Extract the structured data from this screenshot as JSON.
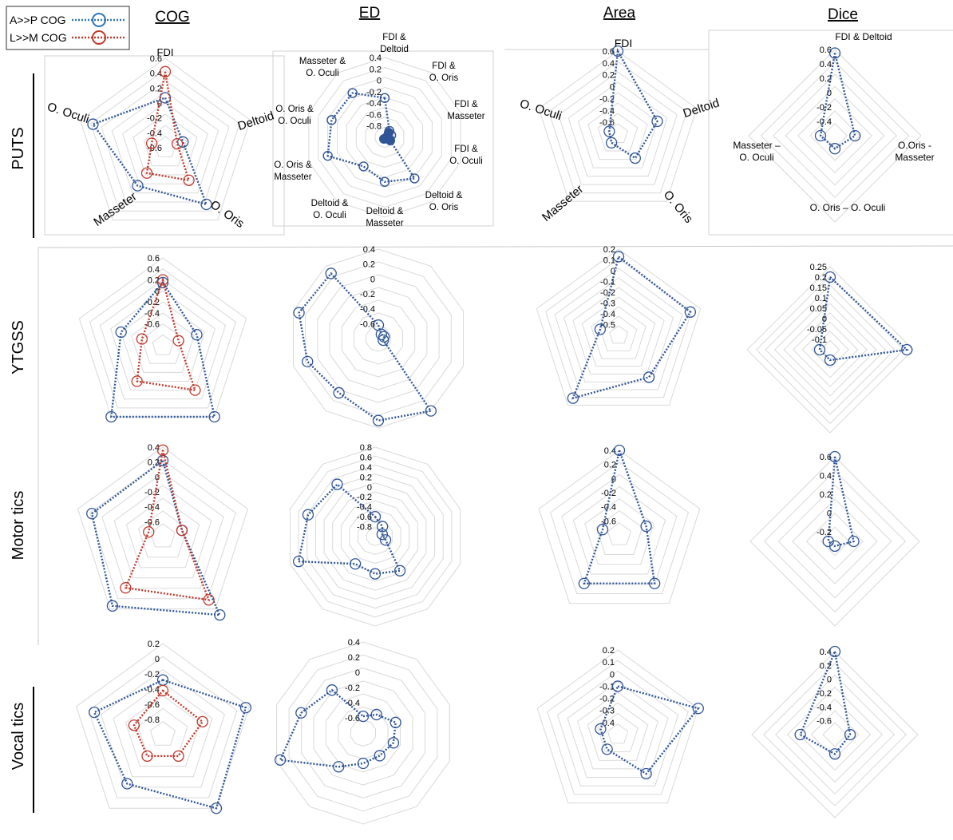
{
  "columns": [
    "COG",
    "ED",
    "Area",
    "Dice"
  ],
  "rows": [
    "PUTS",
    "YTGSS",
    "Motor tics",
    "Vocal tics"
  ],
  "legend": [
    {
      "label": "A>>P COG",
      "color": "#2e75b6"
    },
    {
      "label": "L>>M COG",
      "color": "#c0392b"
    }
  ],
  "colors": {
    "blue_marker": "#2f5597",
    "blue_line": "#2f5597",
    "red": "#c0392b",
    "grid": "#d9d9d9"
  },
  "chart_data": [
    {
      "id": "cog-puts",
      "type": "radar",
      "axes": [
        "FDI",
        "Deltoid",
        "O. Oris",
        "Masseter",
        "O. Oculi"
      ],
      "ticks": [
        "0.6",
        "0.4",
        "0.2",
        "0",
        "-0.2",
        "-0.4",
        "-0.6"
      ],
      "tick_values": [
        0.6,
        0.4,
        0.2,
        0,
        -0.2,
        -0.4,
        -0.6
      ],
      "range": [
        -0.6,
        0.6
      ],
      "series": [
        {
          "name": "A>>P COG",
          "values": [
            0.07,
            -0.35,
            0.34,
            0.03,
            0.42
          ]
        },
        {
          "name": "L>>M COG",
          "values": [
            0.42,
            -0.43,
            -0.06,
            -0.18,
            -0.41
          ]
        }
      ]
    },
    {
      "id": "ed-puts",
      "type": "radar",
      "axes": [
        "FDI & Deltoid",
        "FDI & O. Oris",
        "FDI & Masseter",
        "FDI & O. Oculi",
        "Deltoid & O. Oris",
        "Deltoid & Masseter",
        "Deltoid & O. Oculi",
        "O. Oris & Masseter",
        "O. Oris & O. Oculi",
        "Masseter & O. Oculi"
      ],
      "ticks": [
        "0.4",
        "0.2",
        "0",
        "-0.2",
        "-0.4",
        "-0.6",
        "-0.8"
      ],
      "tick_values": [
        0.4,
        0.2,
        0,
        -0.2,
        -0.4,
        -0.6,
        -0.8
      ],
      "range": [
        -1.0,
        0.4
      ],
      "series": [
        {
          "name": "A>>P COG",
          "values": [
            -0.31,
            -0.86,
            -0.88,
            -0.92,
            -0.11,
            -0.22,
            -0.37,
            0.05,
            -0.02,
            -0.04
          ]
        }
      ]
    },
    {
      "id": "area-puts",
      "type": "radar",
      "axes": [
        "FDI",
        "Deltoid",
        "O. Oris",
        "Masseter",
        "O. Oculi"
      ],
      "ticks": [
        "0.6",
        "0.4",
        "0.2",
        "0",
        "-0.2",
        "-0.4",
        "-0.6"
      ],
      "tick_values": [
        0.6,
        0.4,
        0.2,
        0,
        -0.2,
        -0.4,
        -0.6
      ],
      "range": [
        -0.8,
        0.6
      ],
      "series": [
        {
          "name": "A>>P COG",
          "values": [
            0.6,
            -0.1,
            -0.3,
            -0.62,
            -0.65
          ]
        }
      ]
    },
    {
      "id": "dice-puts",
      "type": "radar",
      "axes": [
        "FDI & Deltoid",
        "O.Oris - Masseter",
        "O. Oris – O. Oculi",
        "Masseter – O. Oculi"
      ],
      "ticks": [
        "0.6",
        "0.4",
        "0.2",
        "0",
        "-0.2",
        "-0.4"
      ],
      "tick_values": [
        0.6,
        0.4,
        0.2,
        0,
        -0.2,
        -0.4
      ],
      "range": [
        -0.6,
        0.6
      ],
      "series": [
        {
          "name": "A>>P COG",
          "values": [
            0.55,
            -0.32,
            -0.42,
            -0.4
          ]
        }
      ]
    },
    {
      "id": "cog-ytgss",
      "type": "radar",
      "axes": [
        "FDI",
        "Deltoid",
        "O. Oris",
        "Masseter",
        "O. Oculi"
      ],
      "ticks": [
        "0.6",
        "0.4",
        "0.2",
        "0",
        "-0.2",
        "-0.4",
        "-0.6"
      ],
      "tick_values": [
        0.6,
        0.4,
        0.2,
        0,
        -0.2,
        -0.4,
        -0.6
      ],
      "range": [
        -1.0,
        0.6
      ],
      "series": [
        {
          "name": "A>>P COG",
          "values": [
            0.15,
            -0.35,
            0.6,
            0.6,
            -0.2
          ]
        },
        {
          "name": "L>>M COG",
          "values": [
            0.2,
            -0.7,
            0.0,
            -0.2,
            -0.6
          ]
        }
      ]
    },
    {
      "id": "ed-ytgss",
      "type": "radar",
      "axes": [
        "",
        "",
        "",
        "",
        "",
        "",
        "",
        "",
        "",
        ""
      ],
      "ticks": [
        "0.4",
        "0.2",
        "0",
        "-0.2",
        "-0.4",
        "-0.6"
      ],
      "tick_values": [
        0.4,
        0.2,
        0,
        -0.2,
        -0.4,
        -0.6
      ],
      "range": [
        -0.8,
        0.4
      ],
      "series": [
        {
          "name": "A>>P COG",
          "values": [
            -0.62,
            -0.73,
            -0.72,
            -0.73,
            0.4,
            0.3,
            0.1,
            0.2,
            0.32,
            0.28
          ]
        }
      ]
    },
    {
      "id": "area-ytgss",
      "type": "radar",
      "axes": [
        "",
        "",
        "",
        "",
        ""
      ],
      "ticks": [
        "0.2",
        "0.1",
        "0",
        "-0.1",
        "-0.2",
        "-0.3",
        "-0.4",
        "-0.5"
      ],
      "tick_values": [
        0.2,
        0.1,
        0,
        -0.1,
        -0.2,
        -0.3,
        -0.4,
        -0.5
      ],
      "range": [
        -0.6,
        0.2
      ],
      "series": [
        {
          "name": "A>>P COG",
          "values": [
            0.13,
            0.1,
            -0.12,
            0.12,
            -0.42
          ]
        }
      ]
    },
    {
      "id": "dice-ytgss",
      "type": "radar",
      "axes": [
        "",
        "",
        "",
        ""
      ],
      "ticks": [
        "0.25",
        "0.2",
        "0.15",
        "0.1",
        "0.05",
        "0",
        "-0.05",
        "-0.1"
      ],
      "tick_values": [
        0.25,
        0.2,
        0.15,
        0.1,
        0.05,
        0,
        -0.05,
        -0.1
      ],
      "range": [
        -0.15,
        0.25
      ],
      "series": [
        {
          "name": "A>>P COG",
          "values": [
            0.2,
            0.22,
            -0.1,
            -0.1
          ]
        }
      ]
    },
    {
      "id": "cog-motor",
      "type": "radar",
      "axes": [
        "",
        "",
        "",
        "",
        ""
      ],
      "ticks": [
        "0.4",
        "0.2",
        "0",
        "-0.2",
        "-0.4",
        "-0.6"
      ],
      "tick_values": [
        0.4,
        0.2,
        0,
        -0.2,
        -0.4,
        -0.6
      ],
      "range": [
        -0.8,
        0.4
      ],
      "series": [
        {
          "name": "A>>P COG",
          "values": [
            0.22,
            -0.53,
            0.5,
            0.35,
            0.2
          ]
        },
        {
          "name": "L>>M COG",
          "values": [
            0.36,
            -0.53,
            0.25,
            0.05,
            -0.6
          ]
        }
      ]
    },
    {
      "id": "ed-motor",
      "type": "radar",
      "axes": [
        "",
        "",
        "",
        "",
        "",
        "",
        "",
        "",
        "",
        ""
      ],
      "ticks": [
        "0.8",
        "0.6",
        "0.4",
        "0.2",
        "0",
        "-0.2",
        "-0.4",
        "-0.6",
        "-0.8"
      ],
      "tick_values": [
        0.8,
        0.6,
        0.4,
        0.2,
        0,
        -0.2,
        -0.4,
        -0.6,
        -0.8
      ],
      "range": [
        -1.0,
        0.8
      ],
      "series": [
        {
          "name": "A>>P COG",
          "values": [
            -0.6,
            -0.75,
            -0.85,
            -0.78,
            -0.15,
            -0.25,
            -0.32,
            0.62,
            0.42,
            0.3
          ]
        }
      ]
    },
    {
      "id": "area-motor",
      "type": "radar",
      "axes": [
        "",
        "",
        "",
        "",
        ""
      ],
      "ticks": [
        "0.4",
        "0.2",
        "0",
        "-0.2",
        "-0.4",
        "-0.6"
      ],
      "tick_values": [
        0.4,
        0.2,
        0,
        -0.2,
        -0.4,
        -0.6
      ],
      "range": [
        -0.8,
        0.4
      ],
      "series": [
        {
          "name": "A>>P COG",
          "values": [
            0.4,
            -0.4,
            0.05,
            0.05,
            -0.55
          ]
        }
      ]
    },
    {
      "id": "dice-motor",
      "type": "radar",
      "axes": [
        "",
        "",
        "",
        ""
      ],
      "ticks": [
        "0.6",
        "0.4",
        "0.2",
        "0",
        "-0.2"
      ],
      "tick_values": [
        0.6,
        0.4,
        0.2,
        0,
        -0.2
      ],
      "range": [
        -0.3,
        0.6
      ],
      "series": [
        {
          "name": "A>>P COG",
          "values": [
            0.6,
            -0.1,
            -0.25,
            -0.23
          ]
        }
      ]
    },
    {
      "id": "cog-vocal",
      "type": "radar",
      "axes": [
        "",
        "",
        "",
        "",
        ""
      ],
      "ticks": [
        "0.2",
        "0",
        "-0.2",
        "-0.4",
        "-0.6",
        "-0.8"
      ],
      "tick_values": [
        0.2,
        0,
        -0.2,
        -0.4,
        -0.6,
        -0.8
      ],
      "range": [
        -1.0,
        0.2
      ],
      "series": [
        {
          "name": "A>>P COG",
          "values": [
            -0.28,
            0.15,
            0.2,
            -0.2,
            -0.05
          ]
        },
        {
          "name": "L>>M COG",
          "values": [
            -0.42,
            -0.45,
            -0.65,
            -0.65,
            -0.6
          ]
        }
      ]
    },
    {
      "id": "ed-vocal",
      "type": "radar",
      "axes": [
        "",
        "",
        "",
        "",
        "",
        "",
        "",
        "",
        "",
        ""
      ],
      "ticks": [
        "0.4",
        "0.2",
        "0",
        "-0.2",
        "-0.4",
        "-0.6"
      ],
      "tick_values": [
        0.4,
        0.2,
        0,
        -0.2,
        -0.4,
        -0.6
      ],
      "range": [
        -0.8,
        0.4
      ],
      "series": [
        {
          "name": "A>>P COG",
          "values": [
            -0.58,
            -0.5,
            -0.35,
            -0.38,
            -0.43,
            -0.4,
            -0.25,
            0.35,
            0.06,
            -0.1
          ]
        }
      ]
    },
    {
      "id": "area-vocal",
      "type": "radar",
      "axes": [
        "",
        "",
        "",
        "",
        ""
      ],
      "ticks": [
        "0.2",
        "0.1",
        "0",
        "-0.1",
        "-0.2",
        "-0.3",
        "-0.4"
      ],
      "tick_values": [
        0.2,
        0.1,
        0,
        -0.1,
        -0.2,
        -0.3,
        -0.4
      ],
      "range": [
        -0.5,
        0.2
      ],
      "series": [
        {
          "name": "A>>P COG",
          "values": [
            -0.1,
            0.2,
            -0.1,
            -0.35,
            -0.35
          ]
        }
      ]
    },
    {
      "id": "dice-vocal",
      "type": "radar",
      "axes": [
        "",
        "",
        "",
        ""
      ],
      "ticks": [
        "0.4",
        "0.2",
        "0",
        "-0.2",
        "-0.4",
        "-0.6"
      ],
      "tick_values": [
        0.4,
        0.2,
        0,
        -0.2,
        -0.4,
        -0.6
      ],
      "range": [
        -0.8,
        0.4
      ],
      "series": [
        {
          "name": "A>>P COG",
          "values": [
            0.4,
            -0.58,
            -0.52,
            -0.3
          ]
        }
      ]
    }
  ]
}
